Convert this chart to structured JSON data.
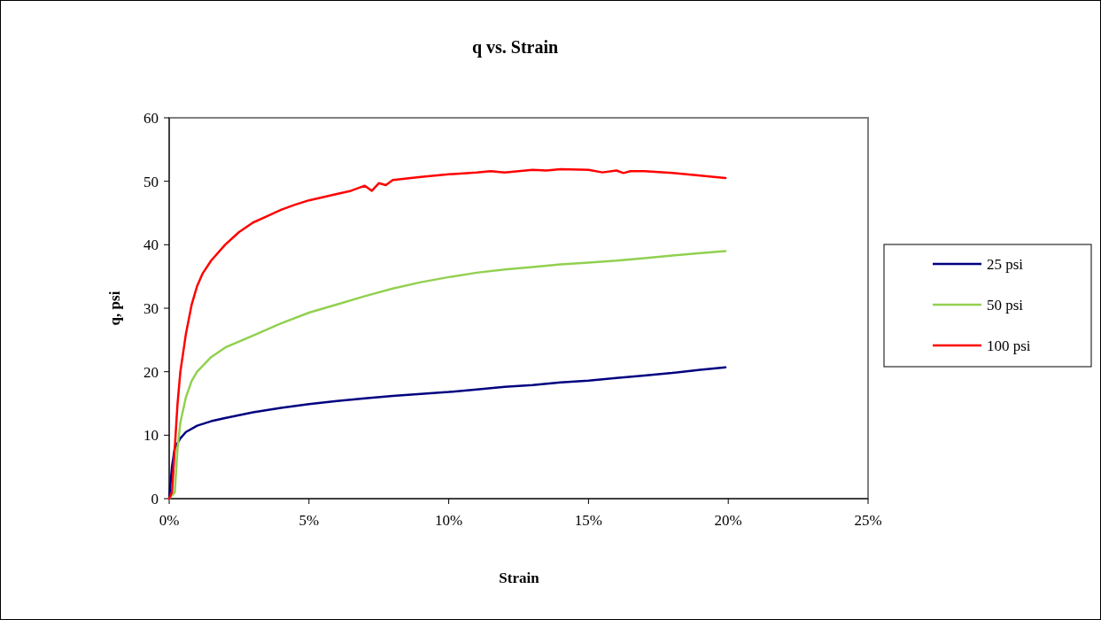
{
  "chart_data": {
    "type": "line",
    "title": "q vs. Strain",
    "xlabel": "Strain",
    "ylabel": "q, psi",
    "xlim": [
      0,
      0.25
    ],
    "xticks": [
      {
        "value": 0,
        "label": "0%"
      },
      {
        "value": 0.05,
        "label": "5%"
      },
      {
        "value": 0.1,
        "label": "10%"
      },
      {
        "value": 0.15,
        "label": "15%"
      },
      {
        "value": 0.2,
        "label": "20%"
      },
      {
        "value": 0.25,
        "label": "25%"
      }
    ],
    "ylim": [
      0,
      60
    ],
    "yticks": [
      0,
      10,
      20,
      30,
      40,
      50,
      60
    ],
    "grid": false,
    "legend": "right",
    "marker": "none",
    "line_style": "solid",
    "series": [
      {
        "name": "25 psi",
        "color": "#000080",
        "x": [
          0,
          0.001,
          0.002,
          0.004,
          0.006,
          0.01,
          0.015,
          0.02,
          0.03,
          0.04,
          0.05,
          0.06,
          0.07,
          0.08,
          0.09,
          0.1,
          0.11,
          0.12,
          0.13,
          0.14,
          0.15,
          0.16,
          0.17,
          0.18,
          0.19,
          0.199
        ],
        "values": [
          0,
          5,
          8,
          9.5,
          10.5,
          11.5,
          12.2,
          12.7,
          13.6,
          14.3,
          14.9,
          15.4,
          15.8,
          16.2,
          16.5,
          16.8,
          17.2,
          17.6,
          17.9,
          18.3,
          18.6,
          19,
          19.4,
          19.8,
          20.3,
          20.7
        ]
      },
      {
        "name": "50 psi",
        "color": "#92d050",
        "x": [
          0,
          0.002,
          0.003,
          0.004,
          0.006,
          0.008,
          0.01,
          0.015,
          0.02,
          0.03,
          0.04,
          0.05,
          0.06,
          0.07,
          0.08,
          0.09,
          0.1,
          0.11,
          0.12,
          0.13,
          0.14,
          0.15,
          0.16,
          0.17,
          0.18,
          0.19,
          0.199
        ],
        "values": [
          0,
          1,
          8,
          12,
          16,
          18.5,
          20,
          22.3,
          23.8,
          25.7,
          27.6,
          29.3,
          30.6,
          31.9,
          33.1,
          34.1,
          34.9,
          35.6,
          36.1,
          36.5,
          36.9,
          37.2,
          37.5,
          37.9,
          38.3,
          38.7,
          39
        ]
      },
      {
        "name": "100 psi",
        "color": "#ff0000",
        "x": [
          0,
          0.001,
          0.002,
          0.003,
          0.004,
          0.006,
          0.008,
          0.01,
          0.012,
          0.015,
          0.02,
          0.025,
          0.03,
          0.035,
          0.04,
          0.045,
          0.05,
          0.06,
          0.065,
          0.07,
          0.0725,
          0.075,
          0.0775,
          0.08,
          0.09,
          0.1,
          0.11,
          0.115,
          0.12,
          0.13,
          0.135,
          0.14,
          0.15,
          0.155,
          0.16,
          0.1625,
          0.165,
          0.17,
          0.18,
          0.19,
          0.199
        ],
        "values": [
          0,
          1,
          8,
          15,
          20,
          26,
          30.5,
          33.5,
          35.5,
          37.5,
          40,
          42,
          43.5,
          44.5,
          45.5,
          46.3,
          47,
          48,
          48.5,
          49.3,
          48.5,
          49.7,
          49.4,
          50.2,
          50.7,
          51.1,
          51.4,
          51.6,
          51.4,
          51.8,
          51.7,
          51.9,
          51.8,
          51.4,
          51.7,
          51.3,
          51.6,
          51.6,
          51.3,
          50.9,
          50.5
        ]
      }
    ]
  }
}
